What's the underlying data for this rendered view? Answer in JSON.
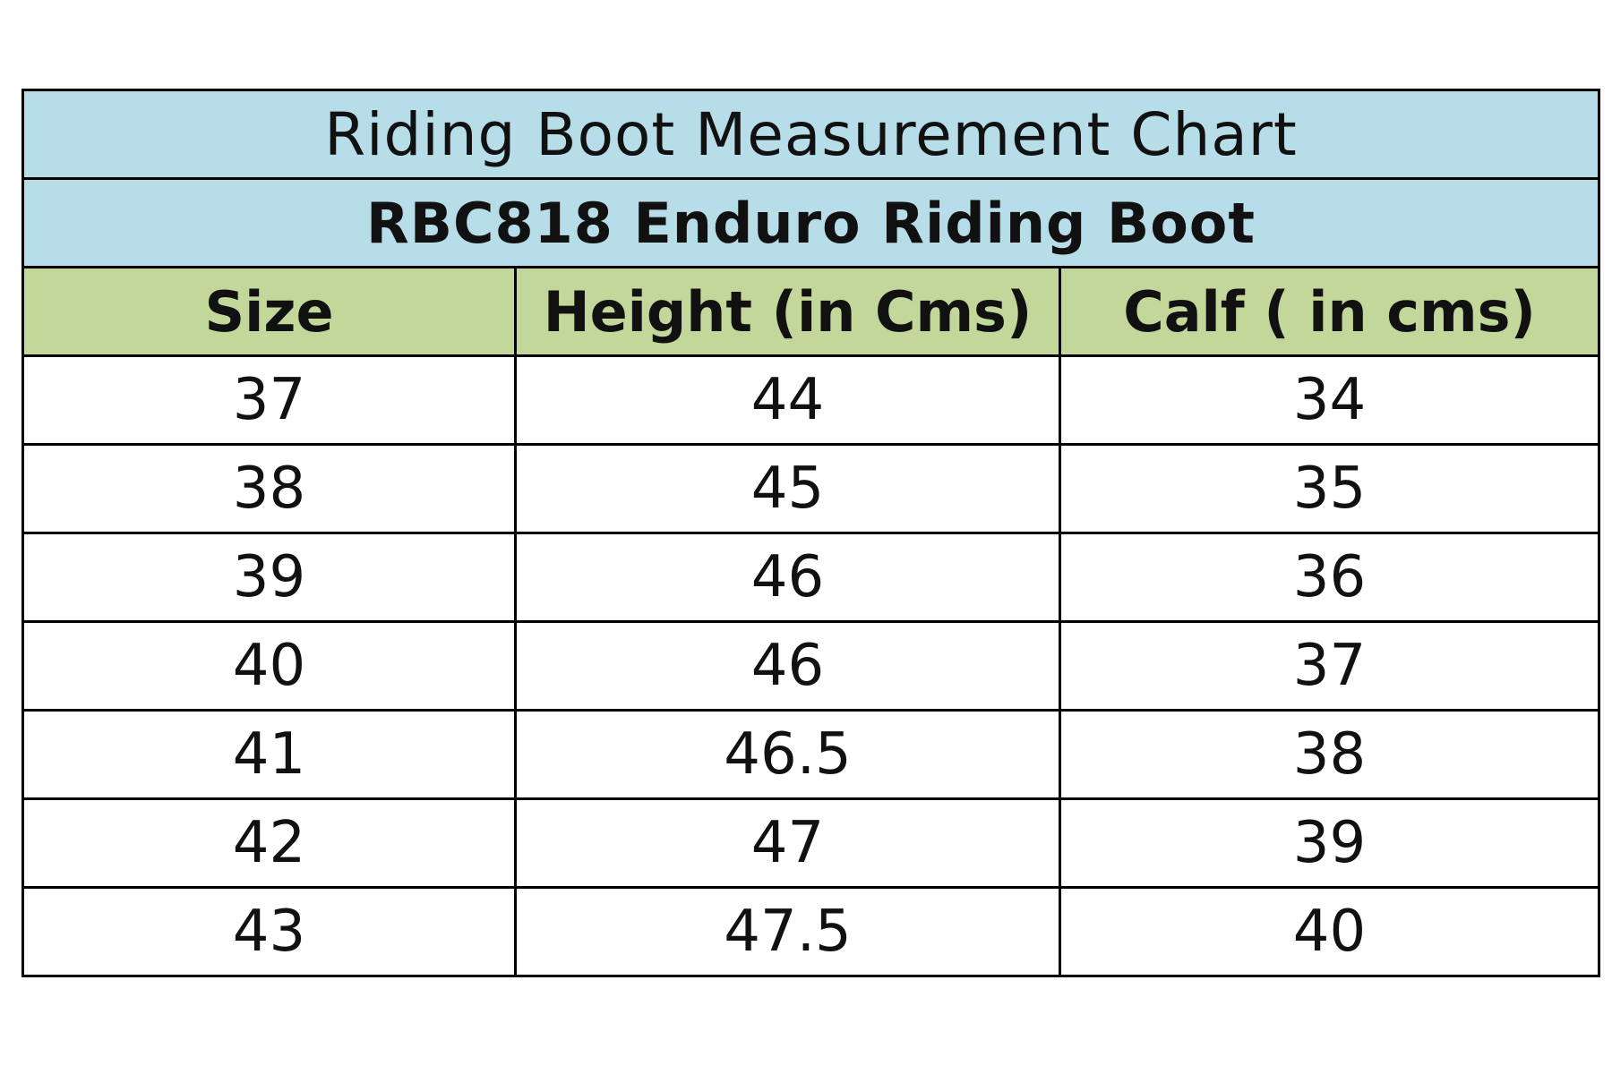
{
  "table": {
    "title": "Riding Boot Measurement Chart",
    "subtitle": "RBC818 Enduro Riding Boot",
    "header_color": "#c4d79b",
    "title_color": "#b7dde8",
    "columns": [
      "Size",
      "Height (in Cms)",
      "Calf ( in cms)"
    ],
    "rows": [
      [
        "37",
        "44",
        "34"
      ],
      [
        "38",
        "45",
        "35"
      ],
      [
        "39",
        "46",
        "36"
      ],
      [
        "40",
        "46",
        "37"
      ],
      [
        "41",
        "46.5",
        "38"
      ],
      [
        "42",
        "47",
        "39"
      ],
      [
        "43",
        "47.5",
        "40"
      ]
    ]
  }
}
